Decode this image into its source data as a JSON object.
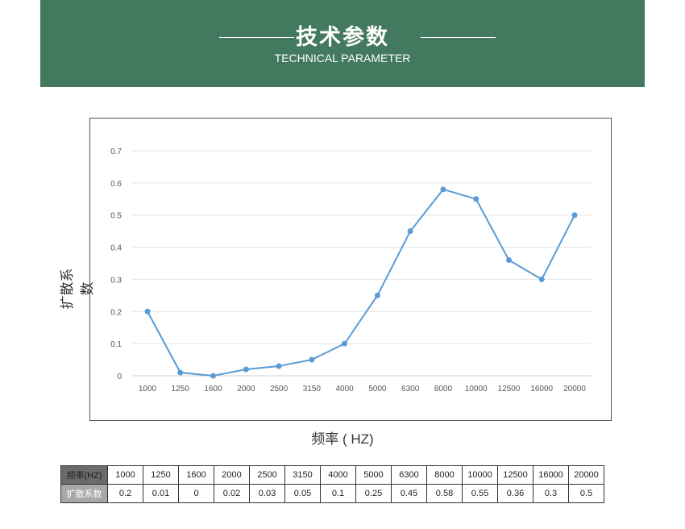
{
  "header": {
    "title": "技术参数",
    "subtitle": "TECHNICAL PARAMETER",
    "background": "#43795e"
  },
  "chart_data": {
    "type": "line",
    "categories": [
      "1000",
      "1250",
      "1600",
      "2000",
      "2500",
      "3150",
      "4000",
      "5000",
      "6300",
      "8000",
      "10000",
      "12500",
      "16000",
      "20000"
    ],
    "values": [
      0.2,
      0.01,
      0,
      0.02,
      0.03,
      0.05,
      0.1,
      0.25,
      0.45,
      0.58,
      0.55,
      0.36,
      0.3,
      0.5
    ],
    "xlabel": "频率 ( HZ)",
    "ylabel": "扩散系数",
    "ylim": [
      0,
      0.7
    ],
    "yticks": [
      "0",
      "0.1",
      "0.2",
      "0.3",
      "0.4",
      "0.5",
      "0.6",
      "0.7"
    ],
    "grid": true,
    "color": "#5b9bd5"
  },
  "table": {
    "row1_label": "频率(HZ)",
    "row2_label": "扩散系数",
    "freqs": [
      "1000",
      "1250",
      "1600",
      "2000",
      "2500",
      "3150",
      "4000",
      "5000",
      "6300",
      "8000",
      "10000",
      "12500",
      "16000",
      "20000"
    ],
    "coeffs": [
      "0.2",
      "0.01",
      "0",
      "0.02",
      "0.03",
      "0.05",
      "0.1",
      "0.25",
      "0.45",
      "0.58",
      "0.55",
      "0.36",
      "0.3",
      "0.5"
    ]
  }
}
